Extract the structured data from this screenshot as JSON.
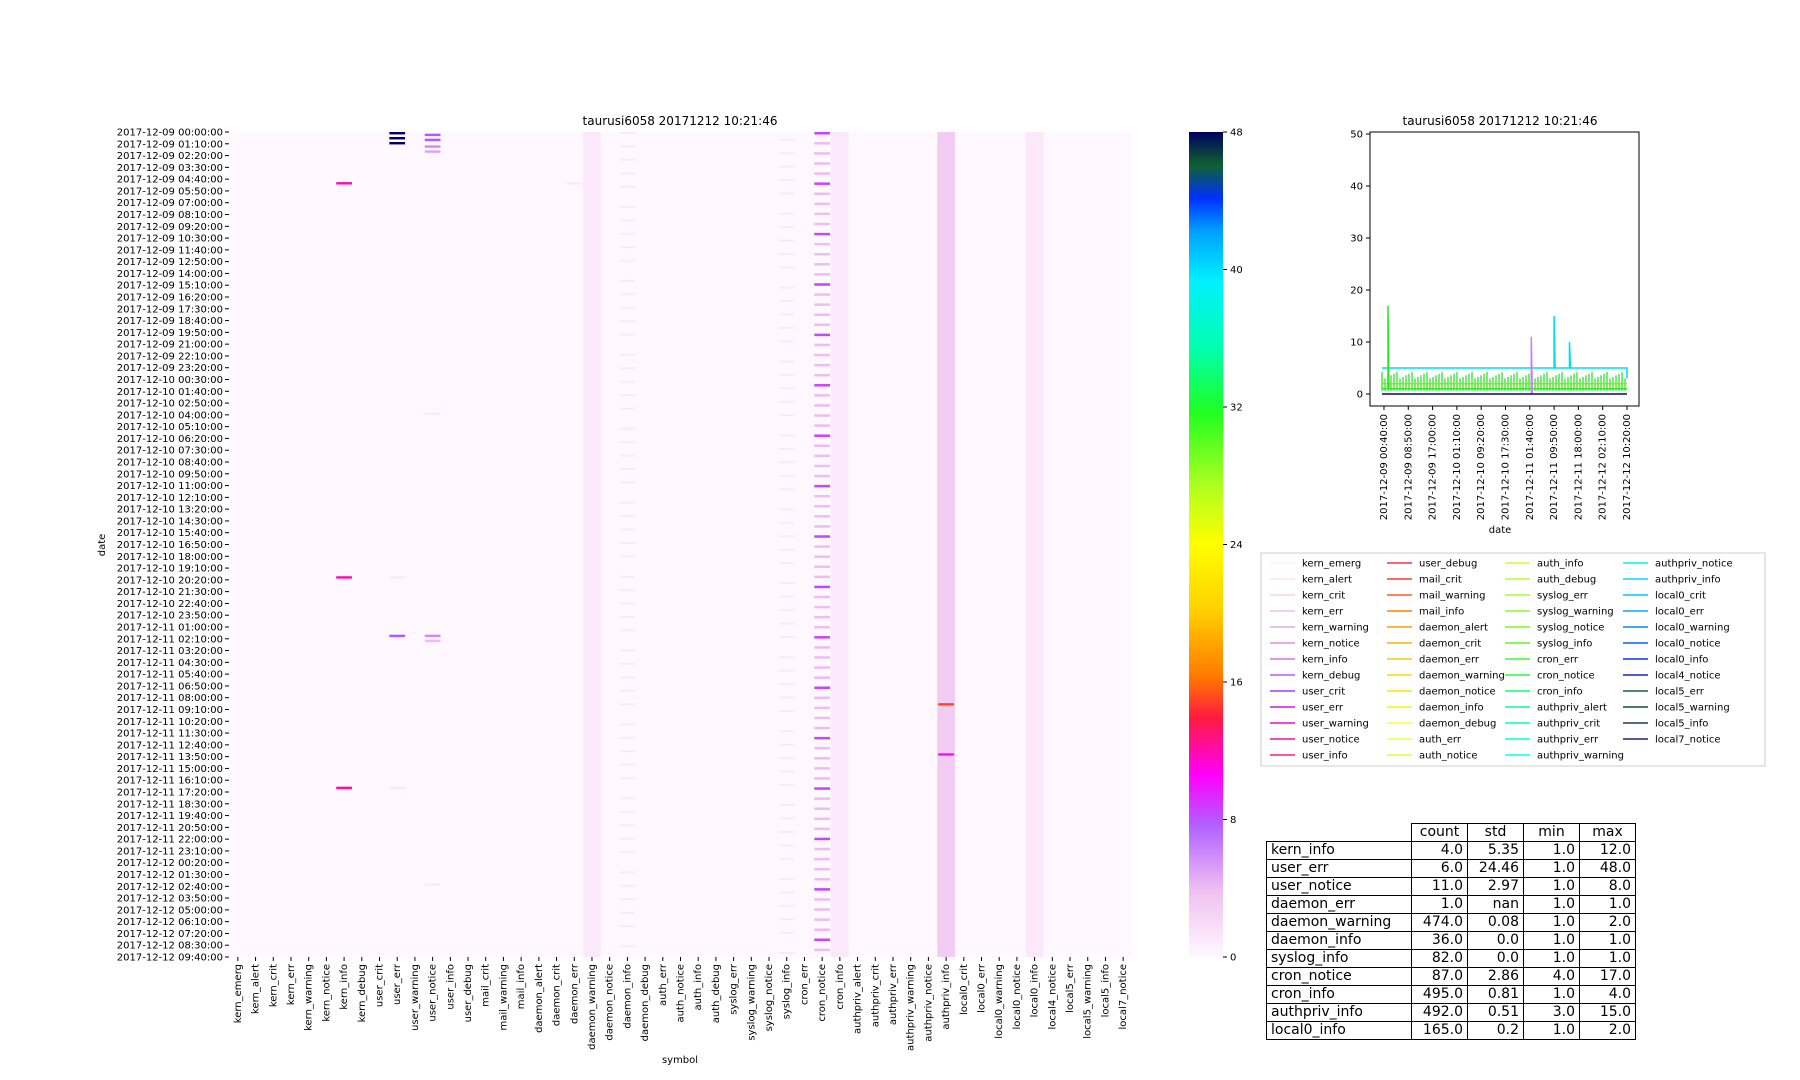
{
  "heatmap": {
    "title": "taurusi6058 20171212 10:21:46",
    "xlabel": "symbol",
    "ylabel": "date",
    "date_ticks": [
      "2017-12-09 00:00:00",
      "2017-12-09 01:10:00",
      "2017-12-09 02:20:00",
      "2017-12-09 03:30:00",
      "2017-12-09 04:40:00",
      "2017-12-09 05:50:00",
      "2017-12-09 07:00:00",
      "2017-12-09 08:10:00",
      "2017-12-09 09:20:00",
      "2017-12-09 10:30:00",
      "2017-12-09 11:40:00",
      "2017-12-09 12:50:00",
      "2017-12-09 14:00:00",
      "2017-12-09 15:10:00",
      "2017-12-09 16:20:00",
      "2017-12-09 17:30:00",
      "2017-12-09 18:40:00",
      "2017-12-09 19:50:00",
      "2017-12-09 21:00:00",
      "2017-12-09 22:10:00",
      "2017-12-09 23:20:00",
      "2017-12-10 00:30:00",
      "2017-12-10 01:40:00",
      "2017-12-10 02:50:00",
      "2017-12-10 04:00:00",
      "2017-12-10 05:10:00",
      "2017-12-10 06:20:00",
      "2017-12-10 07:30:00",
      "2017-12-10 08:40:00",
      "2017-12-10 09:50:00",
      "2017-12-10 11:00:00",
      "2017-12-10 12:10:00",
      "2017-12-10 13:20:00",
      "2017-12-10 14:30:00",
      "2017-12-10 15:40:00",
      "2017-12-10 16:50:00",
      "2017-12-10 18:00:00",
      "2017-12-10 19:10:00",
      "2017-12-10 20:20:00",
      "2017-12-10 21:30:00",
      "2017-12-10 22:40:00",
      "2017-12-10 23:50:00",
      "2017-12-11 01:00:00",
      "2017-12-11 02:10:00",
      "2017-12-11 03:20:00",
      "2017-12-11 04:30:00",
      "2017-12-11 05:40:00",
      "2017-12-11 06:50:00",
      "2017-12-11 08:00:00",
      "2017-12-11 09:10:00",
      "2017-12-11 10:20:00",
      "2017-12-11 11:30:00",
      "2017-12-11 12:40:00",
      "2017-12-11 13:50:00",
      "2017-12-11 15:00:00",
      "2017-12-11 16:10:00",
      "2017-12-11 17:20:00",
      "2017-12-11 18:30:00",
      "2017-12-11 19:40:00",
      "2017-12-11 20:50:00",
      "2017-12-11 22:00:00",
      "2017-12-11 23:10:00",
      "2017-12-12 00:20:00",
      "2017-12-12 01:30:00",
      "2017-12-12 02:40:00",
      "2017-12-12 03:50:00",
      "2017-12-12 05:00:00",
      "2017-12-12 06:10:00",
      "2017-12-12 07:20:00",
      "2017-12-12 08:30:00",
      "2017-12-12 09:40:00"
    ],
    "symbols": [
      "kern_emerg",
      "kern_alert",
      "kern_crit",
      "kern_err",
      "kern_warning",
      "kern_notice",
      "kern_info",
      "kern_debug",
      "user_crit",
      "user_err",
      "user_warning",
      "user_notice",
      "user_info",
      "user_debug",
      "mail_crit",
      "mail_warning",
      "mail_info",
      "daemon_alert",
      "daemon_crit",
      "daemon_err",
      "daemon_warning",
      "daemon_notice",
      "daemon_info",
      "daemon_debug",
      "auth_err",
      "auth_notice",
      "auth_info",
      "auth_debug",
      "syslog_err",
      "syslog_warning",
      "syslog_notice",
      "syslog_info",
      "cron_err",
      "cron_notice",
      "cron_info",
      "authpriv_alert",
      "authpriv_crit",
      "authpriv_err",
      "authpriv_warning",
      "authpriv_notice",
      "authpriv_info",
      "local0_crit",
      "local0_err",
      "local0_warning",
      "local0_notice",
      "local0_info",
      "local4_notice",
      "local5_err",
      "local5_warning",
      "local5_info",
      "local7_notice"
    ]
  },
  "colorbar": {
    "ticks": [
      "0",
      "8",
      "16",
      "24",
      "32",
      "40",
      "48"
    ],
    "range": [
      0,
      48
    ]
  },
  "line_chart": {
    "title": "taurusi6058 20171212 10:21:46",
    "xlabel": "date",
    "y_ticks": [
      "0",
      "10",
      "20",
      "30",
      "40",
      "50"
    ],
    "x_ticks": [
      "2017-12-09 00:40:00",
      "2017-12-09 08:50:00",
      "2017-12-09 17:00:00",
      "2017-12-10 01:10:00",
      "2017-12-10 09:20:00",
      "2017-12-10 17:30:00",
      "2017-12-11 01:40:00",
      "2017-12-11 09:50:00",
      "2017-12-11 18:00:00",
      "2017-12-12 02:10:00",
      "2017-12-12 10:20:00"
    ]
  },
  "legend": {
    "columns": [
      [
        "kern_emerg",
        "kern_alert",
        "kern_crit",
        "kern_err",
        "kern_warning",
        "kern_notice",
        "kern_info",
        "kern_debug",
        "user_crit",
        "user_err",
        "user_warning",
        "user_notice",
        "user_info"
      ],
      [
        "user_debug",
        "mail_crit",
        "mail_warning",
        "mail_info",
        "daemon_alert",
        "daemon_crit",
        "daemon_err",
        "daemon_warning",
        "daemon_notice",
        "daemon_info",
        "daemon_debug",
        "auth_err",
        "auth_notice"
      ],
      [
        "auth_info",
        "auth_debug",
        "syslog_err",
        "syslog_warning",
        "syslog_notice",
        "syslog_info",
        "cron_err",
        "cron_notice",
        "cron_info",
        "authpriv_alert",
        "authpriv_crit",
        "authpriv_err",
        "authpriv_warning"
      ],
      [
        "authpriv_notice",
        "authpriv_info",
        "local0_crit",
        "local0_err",
        "local0_warning",
        "local0_notice",
        "local0_info",
        "local4_notice",
        "local5_err",
        "local5_warning",
        "local5_info",
        "local7_notice"
      ]
    ]
  },
  "stats_table": {
    "headers": [
      "count",
      "std",
      "min",
      "max"
    ],
    "rows": [
      {
        "name": "kern_info",
        "count": "4.0",
        "std": "5.35",
        "min": "1.0",
        "max": "12.0"
      },
      {
        "name": "user_err",
        "count": "6.0",
        "std": "24.46",
        "min": "1.0",
        "max": "48.0"
      },
      {
        "name": "user_notice",
        "count": "11.0",
        "std": "2.97",
        "min": "1.0",
        "max": "8.0"
      },
      {
        "name": "daemon_err",
        "count": "1.0",
        "std": "nan",
        "min": "1.0",
        "max": "1.0"
      },
      {
        "name": "daemon_warning",
        "count": "474.0",
        "std": "0.08",
        "min": "1.0",
        "max": "2.0"
      },
      {
        "name": "daemon_info",
        "count": "36.0",
        "std": "0.0",
        "min": "1.0",
        "max": "1.0"
      },
      {
        "name": "syslog_info",
        "count": "82.0",
        "std": "0.0",
        "min": "1.0",
        "max": "1.0"
      },
      {
        "name": "cron_notice",
        "count": "87.0",
        "std": "2.86",
        "min": "4.0",
        "max": "17.0"
      },
      {
        "name": "cron_info",
        "count": "495.0",
        "std": "0.81",
        "min": "1.0",
        "max": "4.0"
      },
      {
        "name": "authpriv_info",
        "count": "492.0",
        "std": "0.51",
        "min": "3.0",
        "max": "15.0"
      },
      {
        "name": "local0_info",
        "count": "165.0",
        "std": "0.2",
        "min": "1.0",
        "max": "2.0"
      }
    ]
  },
  "chart_data": [
    {
      "type": "heatmap",
      "title": "taurusi6058 20171212 10:21:46",
      "xlabel": "symbol",
      "ylabel": "date",
      "color_range": [
        0,
        48
      ],
      "colormap": "gist_ncar_r",
      "active_columns": {
        "kern_info": {
          "base": 0,
          "events": [
            {
              "date": "2017-12-09 05:00:00",
              "v": 12
            },
            {
              "date": "2017-12-10 20:20:00",
              "v": 12
            },
            {
              "date": "2017-12-11 17:20:00",
              "v": 12
            }
          ]
        },
        "user_err": {
          "base": 0,
          "events": [
            {
              "date": "2017-12-09 00:00:00",
              "v": 48
            },
            {
              "date": "2017-12-09 00:30:00",
              "v": 48
            },
            {
              "date": "2017-12-09 01:00:00",
              "v": 48
            },
            {
              "date": "2017-12-10 20:20:00",
              "v": 1
            },
            {
              "date": "2017-12-11 02:10:00",
              "v": 8
            },
            {
              "date": "2017-12-11 17:20:00",
              "v": 1
            }
          ]
        },
        "user_notice": {
          "base": 0,
          "events": [
            {
              "date": "2017-12-09 00:10:00",
              "v": 8
            },
            {
              "date": "2017-12-09 00:40:00",
              "v": 8
            },
            {
              "date": "2017-12-09 01:20:00",
              "v": 6
            },
            {
              "date": "2017-12-09 01:50:00",
              "v": 5
            },
            {
              "date": "2017-12-10 04:00:00",
              "v": 1
            },
            {
              "date": "2017-12-11 02:10:00",
              "v": 6
            },
            {
              "date": "2017-12-11 02:40:00",
              "v": 4
            },
            {
              "date": "2017-12-12 03:00:00",
              "v": 1
            }
          ]
        },
        "daemon_err": {
          "base": 0,
          "events": [
            {
              "date": "2017-12-09 05:00:00",
              "v": 1
            }
          ]
        },
        "daemon_warning": {
          "base": 1,
          "events": []
        },
        "daemon_info": {
          "base": 0,
          "sparse": 1
        },
        "syslog_info": {
          "base": 0,
          "sparse": 1
        },
        "cron_notice": {
          "base": 0,
          "periodic": [
            4,
            17
          ]
        },
        "cron_info": {
          "base": 1,
          "events": []
        },
        "authpriv_info": {
          "base": 3,
          "events": [
            {
              "date": "2017-12-11 09:00:00",
              "v": 15
            },
            {
              "date": "2017-12-11 14:00:00",
              "v": 10
            }
          ]
        },
        "local0_info": {
          "base": 1,
          "events": []
        }
      }
    },
    {
      "type": "line",
      "title": "taurusi6058 20171212 10:21:46",
      "xlabel": "date",
      "ylim": [
        0,
        50
      ],
      "x_range": [
        "2017-12-09 00:00:00",
        "2017-12-12 10:20:00"
      ],
      "series": [
        {
          "name": "authpriv_info",
          "color": "#00dde8",
          "base": 5,
          "spikes": [
            {
              "date": "2017-12-11 09:50:00",
              "v": 15
            },
            {
              "date": "2017-12-11 15:00:00",
              "v": 10
            }
          ]
        },
        {
          "name": "cron_notice",
          "color": "#31e42d",
          "base": 1,
          "spikes": [
            {
              "date": "2017-12-09 02:00:00",
              "v": 17
            }
          ]
        },
        {
          "name": "user_notice",
          "color": "#c086e6",
          "base": 0,
          "spikes": [
            {
              "date": "2017-12-11 02:10:00",
              "v": 11
            }
          ]
        },
        {
          "name": "local7_notice",
          "color": "#1a1a6e",
          "base": 0,
          "spikes": []
        }
      ]
    }
  ]
}
